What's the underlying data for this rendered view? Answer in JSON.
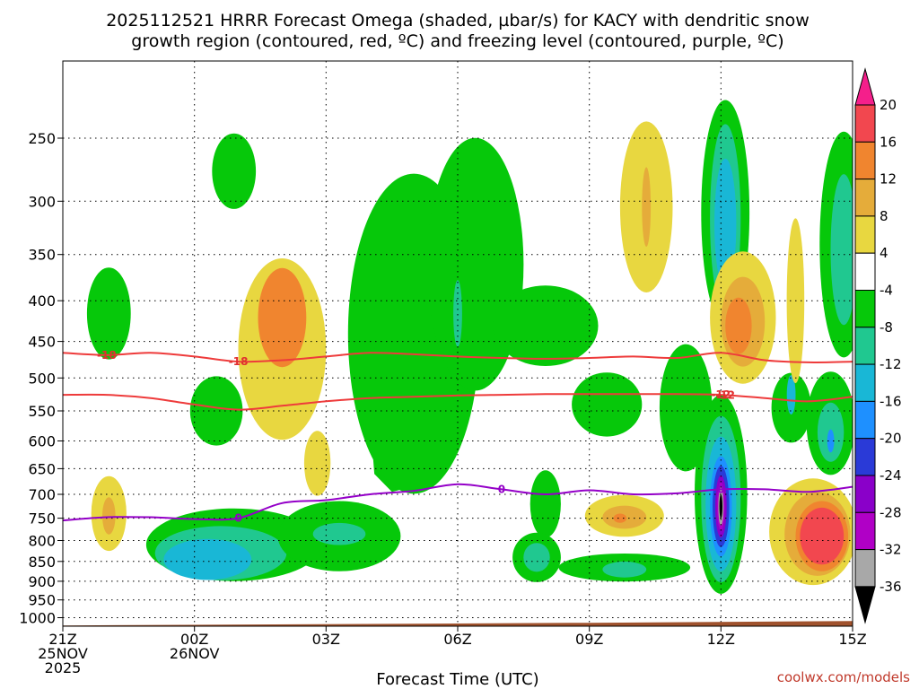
{
  "chart_data": {
    "type": "heatmap",
    "title_lines": [
      "2025112521 HRRR Forecast Omega (shaded, µbar/s) for KACY with dendritic snow",
      "growth region (contoured, red, ºC) and freezing level (contoured, purple, ºC)"
    ],
    "xlabel": "Forecast Time (UTC)",
    "ylabel": "",
    "credit": "coolwx.com/models",
    "x_hours": [
      0,
      3,
      6,
      9,
      12,
      15,
      18
    ],
    "x_ticks": [
      {
        "h": 0,
        "lines": [
          "21Z",
          "25NOV",
          "2025"
        ]
      },
      {
        "h": 3,
        "lines": [
          "00Z",
          "26NOV"
        ]
      },
      {
        "h": 6,
        "lines": [
          "03Z"
        ]
      },
      {
        "h": 9,
        "lines": [
          "06Z"
        ]
      },
      {
        "h": 12,
        "lines": [
          "09Z"
        ]
      },
      {
        "h": 15,
        "lines": [
          "12Z"
        ]
      },
      {
        "h": 18,
        "lines": [
          "15Z"
        ]
      }
    ],
    "y_ticks": [
      250,
      300,
      350,
      400,
      450,
      500,
      550,
      600,
      650,
      700,
      750,
      800,
      850,
      900,
      950,
      1000
    ],
    "xlim": [
      0,
      18
    ],
    "ylim_hPa": [
      200,
      1025
    ],
    "colorbar": {
      "labels": [
        20,
        16,
        12,
        8,
        4,
        -4,
        -8,
        -12,
        -16,
        -20,
        -24,
        -28,
        -32,
        -36
      ],
      "colors": [
        "#f51f8b",
        "#f2474f",
        "#f0852f",
        "#e5ac3a",
        "#e8d740",
        "#ffffff",
        "#06c80a",
        "#20c890",
        "#19b7d6",
        "#1e90ff",
        "#2a3ad7",
        "#8a00c9",
        "#b000c6",
        "#a8a8a8",
        "#000000"
      ]
    },
    "omega_blobs": [
      {
        "x": 1.05,
        "p": 415,
        "rx": 0.5,
        "ry": 55,
        "v": -6
      },
      {
        "x": 1.05,
        "p": 740,
        "rx": 0.4,
        "ry": 80,
        "v": 6
      },
      {
        "x": 1.05,
        "p": 745,
        "rx": 0.15,
        "ry": 40,
        "v": 9
      },
      {
        "x": 3.9,
        "p": 275,
        "rx": 0.5,
        "ry": 30,
        "v": -6
      },
      {
        "x": 3.5,
        "p": 550,
        "rx": 0.6,
        "ry": 55,
        "v": -6
      },
      {
        "x": 5.0,
        "p": 460,
        "rx": 1.0,
        "ry": 120,
        "v": 6
      },
      {
        "x": 5.0,
        "p": 420,
        "rx": 0.55,
        "ry": 60,
        "v": 12
      },
      {
        "x": 5.8,
        "p": 640,
        "rx": 0.3,
        "ry": 60,
        "v": 6
      },
      {
        "x": 3.9,
        "p": 810,
        "rx": 2.0,
        "ry": 85,
        "v": -6
      },
      {
        "x": 3.6,
        "p": 830,
        "rx": 1.5,
        "ry": 65,
        "v": -10
      },
      {
        "x": 3.3,
        "p": 845,
        "rx": 1.0,
        "ry": 50,
        "v": -14
      },
      {
        "x": 6.3,
        "p": 790,
        "rx": 1.4,
        "ry": 80,
        "v": -6
      },
      {
        "x": 6.3,
        "p": 785,
        "rx": 0.6,
        "ry": 25,
        "v": -10
      },
      {
        "x": 8.0,
        "p": 440,
        "rx": 1.5,
        "ry": 200,
        "v": -6
      },
      {
        "x": 9.4,
        "p": 360,
        "rx": 1.1,
        "ry": 130,
        "v": -6
      },
      {
        "x": 9.0,
        "p": 415,
        "rx": 0.1,
        "ry": 40,
        "v": -10
      },
      {
        "x": 11.0,
        "p": 430,
        "rx": 1.2,
        "ry": 50,
        "v": -6
      },
      {
        "x": 12.4,
        "p": 540,
        "rx": 0.8,
        "ry": 50,
        "v": -6
      },
      {
        "x": 11.0,
        "p": 720,
        "rx": 0.35,
        "ry": 70,
        "v": -6
      },
      {
        "x": 10.8,
        "p": 840,
        "rx": 0.55,
        "ry": 60,
        "v": -6
      },
      {
        "x": 10.8,
        "p": 840,
        "rx": 0.3,
        "ry": 35,
        "v": -10
      },
      {
        "x": 12.8,
        "p": 865,
        "rx": 1.5,
        "ry": 35,
        "v": -6
      },
      {
        "x": 12.8,
        "p": 870,
        "rx": 0.5,
        "ry": 20,
        "v": -10
      },
      {
        "x": 13.3,
        "p": 305,
        "rx": 0.6,
        "ry": 75,
        "v": 5
      },
      {
        "x": 13.3,
        "p": 305,
        "rx": 0.1,
        "ry": 35,
        "v": 8
      },
      {
        "x": 14.2,
        "p": 545,
        "rx": 0.6,
        "ry": 100,
        "v": -6
      },
      {
        "x": 15.1,
        "p": 310,
        "rx": 0.55,
        "ry": 100,
        "v": -6
      },
      {
        "x": 15.1,
        "p": 315,
        "rx": 0.35,
        "ry": 85,
        "v": -10
      },
      {
        "x": 15.1,
        "p": 320,
        "rx": 0.25,
        "ry": 60,
        "v": -14
      },
      {
        "x": 15.0,
        "p": 700,
        "rx": 0.6,
        "ry": 200,
        "v": -6
      },
      {
        "x": 15.0,
        "p": 710,
        "rx": 0.45,
        "ry": 170,
        "v": -10
      },
      {
        "x": 15.0,
        "p": 720,
        "rx": 0.35,
        "ry": 140,
        "v": -14
      },
      {
        "x": 15.0,
        "p": 725,
        "rx": 0.25,
        "ry": 105,
        "v": -18
      },
      {
        "x": 15.0,
        "p": 725,
        "rx": 0.19,
        "ry": 85,
        "v": -22
      },
      {
        "x": 15.0,
        "p": 725,
        "rx": 0.13,
        "ry": 65,
        "v": -26
      },
      {
        "x": 15.0,
        "p": 725,
        "rx": 0.09,
        "ry": 50,
        "v": -30
      },
      {
        "x": 15.0,
        "p": 725,
        "rx": 0.06,
        "ry": 40,
        "v": -34
      },
      {
        "x": 15.0,
        "p": 725,
        "rx": 0.035,
        "ry": 25,
        "v": -40
      },
      {
        "x": 16.6,
        "p": 545,
        "rx": 0.45,
        "ry": 55,
        "v": -6
      },
      {
        "x": 16.6,
        "p": 525,
        "rx": 0.1,
        "ry": 30,
        "v": -14
      },
      {
        "x": 17.5,
        "p": 570,
        "rx": 0.55,
        "ry": 85,
        "v": -6
      },
      {
        "x": 17.5,
        "p": 585,
        "rx": 0.3,
        "ry": 50,
        "v": -10
      },
      {
        "x": 17.5,
        "p": 600,
        "rx": 0.08,
        "ry": 20,
        "v": -18
      },
      {
        "x": 17.8,
        "p": 340,
        "rx": 0.55,
        "ry": 110,
        "v": -6
      },
      {
        "x": 17.8,
        "p": 345,
        "rx": 0.3,
        "ry": 75,
        "v": -10
      },
      {
        "x": 16.7,
        "p": 400,
        "rx": 0.2,
        "ry": 95,
        "v": 5
      },
      {
        "x": 15.5,
        "p": 420,
        "rx": 0.75,
        "ry": 80,
        "v": 5
      },
      {
        "x": 15.5,
        "p": 425,
        "rx": 0.5,
        "ry": 55,
        "v": 9
      },
      {
        "x": 15.4,
        "p": 430,
        "rx": 0.3,
        "ry": 35,
        "v": 13
      },
      {
        "x": 12.8,
        "p": 745,
        "rx": 0.9,
        "ry": 45,
        "v": 6
      },
      {
        "x": 12.8,
        "p": 748,
        "rx": 0.5,
        "ry": 25,
        "v": 10
      },
      {
        "x": 12.7,
        "p": 750,
        "rx": 0.15,
        "ry": 10,
        "v": 14
      },
      {
        "x": 17.1,
        "p": 780,
        "rx": 1.0,
        "ry": 120,
        "v": 6
      },
      {
        "x": 17.2,
        "p": 785,
        "rx": 0.75,
        "ry": 95,
        "v": 10
      },
      {
        "x": 17.3,
        "p": 790,
        "rx": 0.6,
        "ry": 80,
        "v": 14
      },
      {
        "x": 17.3,
        "p": 790,
        "rx": 0.5,
        "ry": 65,
        "v": 19
      }
    ],
    "omega_polygons": [
      {
        "v": -6,
        "pts": [
          [
            7.1,
            310
          ],
          [
            7.6,
            295
          ],
          [
            8.4,
            310
          ],
          [
            9.3,
            305
          ],
          [
            9.8,
            370
          ],
          [
            9.6,
            450
          ],
          [
            9.1,
            520
          ],
          [
            8.7,
            620
          ],
          [
            8.2,
            680
          ],
          [
            7.5,
            695
          ],
          [
            7.1,
            660
          ],
          [
            7.0,
            560
          ],
          [
            7.0,
            450
          ],
          [
            7.0,
            380
          ]
        ]
      }
    ],
    "dendritic_contours": [
      {
        "label": "-18",
        "label_h": 4.0,
        "label_at": 1,
        "pts": [
          [
            0,
            465
          ],
          [
            1,
            468
          ],
          [
            2,
            465
          ],
          [
            3,
            470
          ],
          [
            4,
            477
          ],
          [
            5,
            475
          ],
          [
            6,
            470
          ],
          [
            7,
            465
          ],
          [
            8,
            467
          ],
          [
            9,
            470
          ],
          [
            10,
            472
          ],
          [
            11,
            473
          ],
          [
            12,
            472
          ],
          [
            13,
            470
          ],
          [
            14,
            472
          ],
          [
            15,
            465
          ],
          [
            16,
            475
          ],
          [
            17,
            478
          ],
          [
            18,
            477
          ]
        ]
      },
      {
        "label": "-12",
        "label_h": 15.1,
        "label_at": 15,
        "pts": [
          [
            0,
            525
          ],
          [
            1,
            525
          ],
          [
            2,
            530
          ],
          [
            3,
            540
          ],
          [
            4,
            548
          ],
          [
            5,
            542
          ],
          [
            6,
            535
          ],
          [
            7,
            530
          ],
          [
            8,
            528
          ],
          [
            9,
            526
          ],
          [
            10,
            525
          ],
          [
            11,
            524
          ],
          [
            12,
            524
          ],
          [
            13,
            524
          ],
          [
            14,
            524
          ],
          [
            15,
            525
          ],
          [
            16,
            530
          ],
          [
            17,
            535
          ],
          [
            18,
            528
          ]
        ]
      }
    ],
    "freezing_contour": {
      "label": "0",
      "label_h": 4.0,
      "pts": [
        [
          0,
          755
        ],
        [
          1,
          748
        ],
        [
          2,
          748
        ],
        [
          3,
          752
        ],
        [
          4,
          750
        ],
        [
          5,
          718
        ],
        [
          6,
          712
        ],
        [
          7,
          700
        ],
        [
          8,
          693
        ],
        [
          9,
          680
        ],
        [
          10,
          690
        ],
        [
          11,
          700
        ],
        [
          12,
          692
        ],
        [
          13,
          700
        ],
        [
          14,
          698
        ],
        [
          15,
          690
        ],
        [
          16,
          690
        ],
        [
          17,
          695
        ],
        [
          18,
          685
        ]
      ]
    },
    "ground_top_hPa": 1015
  }
}
